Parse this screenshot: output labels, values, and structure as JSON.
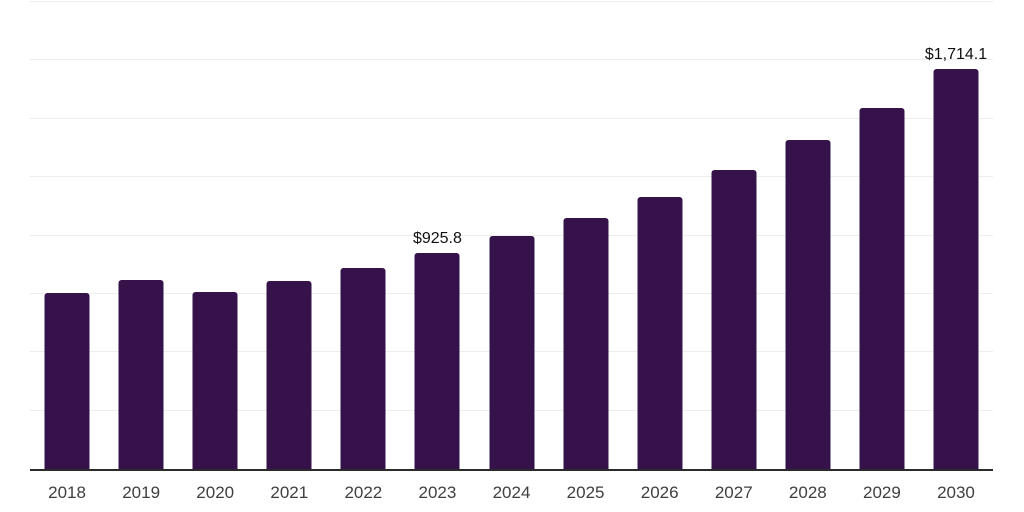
{
  "chart_data": {
    "type": "bar",
    "title": "",
    "categories": [
      "2018",
      "2019",
      "2020",
      "2021",
      "2022",
      "2023",
      "2024",
      "2025",
      "2026",
      "2027",
      "2028",
      "2029",
      "2030"
    ],
    "values": [
      755,
      810,
      760,
      806,
      862,
      925.8,
      998,
      1076,
      1166,
      1280,
      1408,
      1546,
      1714.1
    ],
    "data_labels": [
      "",
      "",
      "",
      "",
      "",
      "$925.8",
      "",
      "",
      "",
      "",
      "",
      "",
      "$1,714.1"
    ],
    "ylim": [
      0,
      2000
    ],
    "grid_step": 250,
    "grid": true,
    "legend_position": "none",
    "colors": {
      "bar": "#35134a",
      "gridline": "#ededed",
      "axis_line": "#2b2b2b",
      "tick_label": "#3f3f3f",
      "data_label": "#111111",
      "background": "#ffffff"
    }
  }
}
